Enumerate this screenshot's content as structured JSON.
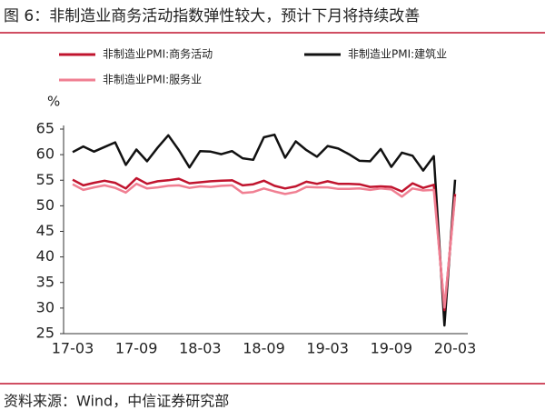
{
  "chart_data": {
    "type": "line",
    "title": "图 6：非制造业商务活动指数弹性较大，预计下月将持续改善",
    "source": "资料来源：Wind，中信证券研究部",
    "y_label": "%",
    "categories": [
      "17-03",
      null,
      null,
      null,
      null,
      null,
      "17-09",
      null,
      null,
      null,
      null,
      null,
      "18-03",
      null,
      null,
      null,
      null,
      null,
      "18-09",
      null,
      null,
      null,
      null,
      null,
      "19-03",
      null,
      null,
      null,
      null,
      null,
      "19-09",
      null,
      null,
      null,
      null,
      null,
      "20-03"
    ],
    "ylim": [
      25,
      65
    ],
    "yticks": [
      25,
      30,
      35,
      40,
      45,
      50,
      55,
      60,
      65
    ],
    "grid": false,
    "series": [
      {
        "name": "非制造业PMI:商务活动",
        "color": "#c0142e",
        "values": [
          55.1,
          54.0,
          54.5,
          54.9,
          54.5,
          53.4,
          55.4,
          54.3,
          54.8,
          55.0,
          55.3,
          54.4,
          54.6,
          54.8,
          54.9,
          55.0,
          54.0,
          54.2,
          54.9,
          53.9,
          53.4,
          53.8,
          54.7,
          54.3,
          54.8,
          54.3,
          54.3,
          54.2,
          53.7,
          53.8,
          53.7,
          52.8,
          54.4,
          53.5,
          54.1,
          29.6,
          52.3
        ]
      },
      {
        "name": "非制造业PMI:建筑业",
        "color": "#111111",
        "values": [
          60.5,
          61.6,
          60.6,
          61.5,
          62.4,
          58.0,
          61.0,
          58.7,
          61.4,
          63.8,
          60.9,
          57.5,
          60.7,
          60.6,
          60.1,
          60.7,
          59.3,
          59.0,
          63.4,
          63.9,
          59.4,
          62.6,
          60.9,
          59.6,
          61.7,
          61.2,
          60.1,
          58.8,
          58.7,
          61.1,
          57.6,
          60.4,
          59.8,
          56.9,
          59.7,
          26.6,
          55.1
        ]
      },
      {
        "name": "非制造业PMI:服务业",
        "color": "#f07f92",
        "values": [
          54.2,
          53.1,
          53.6,
          54.0,
          53.5,
          52.6,
          54.3,
          53.4,
          53.6,
          53.9,
          54.0,
          53.5,
          53.8,
          53.7,
          53.9,
          54.0,
          52.5,
          52.7,
          53.4,
          52.8,
          52.3,
          52.7,
          53.7,
          53.6,
          53.6,
          53.3,
          53.3,
          53.4,
          53.1,
          53.4,
          53.2,
          51.8,
          53.4,
          53.0,
          53.1,
          30.1,
          51.8
        ]
      }
    ]
  }
}
